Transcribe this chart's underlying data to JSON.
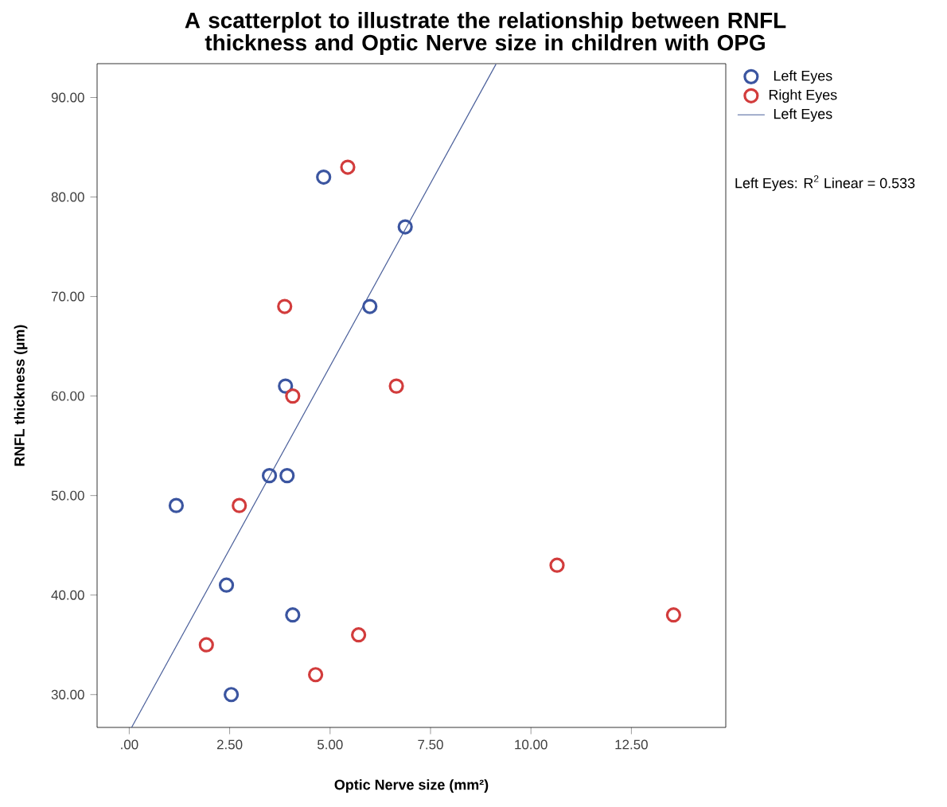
{
  "chart_data": {
    "type": "scatter",
    "title": "A scatterplot to illustrate the relationship between RNFL thickness and Optic Nerve size in children with OPG",
    "xlabel": "Optic Nerve size (mm²)",
    "ylabel": "RNFL thickness (µm)",
    "xlim": [
      -0.8,
      14.85
    ],
    "ylim": [
      26.7,
      93.4
    ],
    "xticks": [
      {
        "value": 0,
        "label": ".00"
      },
      {
        "value": 2.5,
        "label": "2.50"
      },
      {
        "value": 5,
        "label": "5.00"
      },
      {
        "value": 7.5,
        "label": "7.50"
      },
      {
        "value": 10,
        "label": "10.00"
      },
      {
        "value": 12.5,
        "label": "12.50"
      }
    ],
    "yticks": [
      {
        "value": 30,
        "label": "30.00"
      },
      {
        "value": 40,
        "label": "40.00"
      },
      {
        "value": 50,
        "label": "50.00"
      },
      {
        "value": 60,
        "label": "60.00"
      },
      {
        "value": 70,
        "label": "70.00"
      },
      {
        "value": 80,
        "label": "80.00"
      },
      {
        "value": 90,
        "label": "90.00"
      }
    ],
    "grid": false,
    "legend": "top right",
    "marker": "circle",
    "series": [
      {
        "name": "Left Eyes",
        "color": "#3b55a0",
        "x": [
          1.17,
          2.42,
          2.54,
          3.49,
          3.93,
          3.89,
          4.07,
          4.84,
          5.99,
          6.87
        ],
        "values": [
          49,
          41,
          30,
          52,
          52,
          61,
          38,
          82,
          69,
          77
        ]
      },
      {
        "name": "Right Eyes",
        "color": "#d23c3c",
        "x": [
          5.44,
          3.87,
          4.07,
          6.65,
          2.74,
          1.92,
          4.64,
          5.71,
          10.65,
          13.55
        ],
        "values": [
          83,
          69,
          60,
          61,
          49,
          35,
          32,
          36,
          43,
          38
        ]
      },
      {
        "name": "Left Eyes",
        "type": "line",
        "marker": "none",
        "color": "#4a5f9a",
        "x": [
          0.06,
          9.13
        ],
        "values": [
          26.7,
          93.35
        ]
      }
    ],
    "annotations": [
      "Left Eyes: R$^{2}$ Linear = 0.533"
    ]
  }
}
